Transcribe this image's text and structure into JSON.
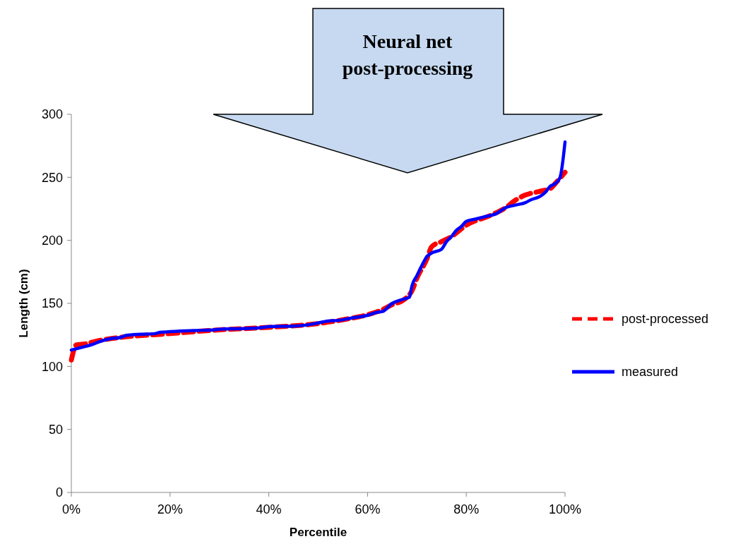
{
  "chart_data": {
    "type": "line",
    "xlabel": "Percentile",
    "ylabel": "Length (cm)",
    "annotations": [
      "Neural net post-processing"
    ],
    "xlim": [
      0,
      100
    ],
    "ylim": [
      0,
      300
    ],
    "xticks": [
      {
        "value": 0,
        "label": "0%"
      },
      {
        "value": 20,
        "label": "20%"
      },
      {
        "value": 40,
        "label": "40%"
      },
      {
        "value": 60,
        "label": "60%"
      },
      {
        "value": 80,
        "label": "80%"
      },
      {
        "value": 100,
        "label": "100%"
      }
    ],
    "yticks": [
      0,
      50,
      100,
      150,
      200,
      250,
      300
    ],
    "grid": false,
    "legend": "right",
    "series": [
      {
        "name": "post-processed",
        "color": "#ff0000",
        "line_style": "dashed",
        "x": [
          0,
          1,
          3,
          5,
          10,
          20,
          30,
          40,
          50,
          55,
          60,
          63,
          65,
          67,
          68,
          69,
          70,
          72,
          73,
          75,
          77,
          80,
          85,
          88,
          90,
          92,
          95,
          97,
          98,
          100
        ],
        "values": [
          105,
          117,
          118,
          120,
          123,
          126,
          129,
          131,
          134,
          137,
          141,
          145,
          149,
          152,
          155,
          160,
          170,
          185,
          195,
          199,
          203,
          212,
          220,
          226,
          232,
          236,
          239,
          241,
          245,
          254
        ]
      },
      {
        "name": "measured",
        "color": "#0000ff",
        "line_style": "solid",
        "x": [
          0,
          2,
          4,
          6,
          8,
          10,
          11,
          14,
          17,
          18,
          22,
          25,
          29,
          30,
          35,
          38,
          40,
          45,
          48,
          50,
          52,
          54,
          57,
          60,
          62,
          63,
          65,
          67,
          68.5,
          69,
          70,
          71,
          72,
          73,
          75,
          76,
          77,
          78,
          79,
          80,
          82,
          84,
          86,
          88,
          90,
          92,
          93,
          95,
          96,
          97,
          98,
          99,
          100
        ],
        "values": [
          113,
          115,
          117,
          120,
          122,
          123,
          124.5,
          125.5,
          126,
          127,
          128,
          128.5,
          129,
          129.5,
          130,
          130.5,
          131.5,
          132,
          133,
          134.5,
          136,
          136.5,
          138.5,
          140.5,
          143,
          143.5,
          150,
          153,
          155,
          164,
          172,
          180,
          187,
          190,
          193,
          199,
          203,
          208,
          211,
          215,
          217,
          219,
          221,
          226,
          228,
          230,
          232,
          235,
          238,
          243,
          245,
          250,
          278
        ]
      }
    ]
  }
}
